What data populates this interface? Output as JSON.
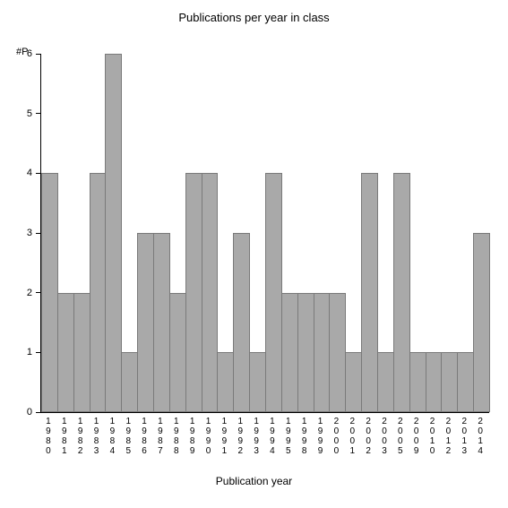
{
  "chart": {
    "type": "bar",
    "title": "Publications per year in class",
    "y_label": "#P",
    "x_axis_label": "Publication year",
    "categories": [
      "1980",
      "1981",
      "1982",
      "1983",
      "1984",
      "1985",
      "1986",
      "1987",
      "1988",
      "1989",
      "1990",
      "1991",
      "1992",
      "1993",
      "1994",
      "1995",
      "1998",
      "1999",
      "2000",
      "2001",
      "2002",
      "2003",
      "2005",
      "2009",
      "2010",
      "2012",
      "2013",
      "2014"
    ],
    "values": [
      4,
      2,
      2,
      4,
      6,
      1,
      3,
      3,
      2,
      4,
      4,
      1,
      3,
      1,
      4,
      2,
      2,
      2,
      2,
      1,
      4,
      1,
      4,
      1,
      1,
      1,
      1,
      3
    ],
    "ylim": [
      0,
      6
    ],
    "yticks": [
      0,
      1,
      2,
      3,
      4,
      5,
      6
    ],
    "bar_color": "#a9a9a9",
    "bar_border_color": "#7a7a7a",
    "background_color": "#ffffff",
    "axis_color": "#000000",
    "text_color": "#000000",
    "title_fontsize": 13,
    "tick_fontsize": 11,
    "xlabel_fontsize": 10,
    "axis_label_fontsize": 12
  }
}
